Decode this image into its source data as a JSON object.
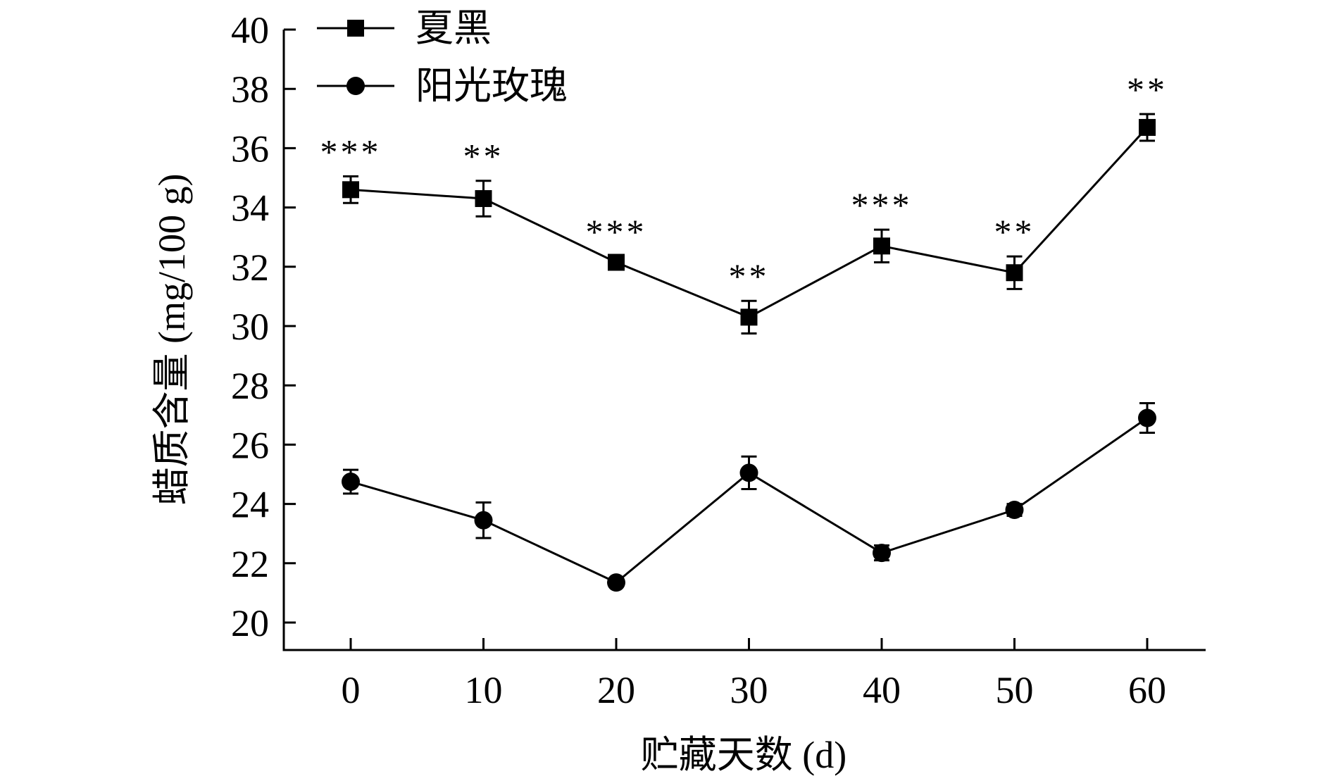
{
  "chart_data": {
    "type": "line",
    "title": "",
    "xlabel": "贮藏天数 (d)",
    "ylabel": "蜡质含量 (mg/100 g)",
    "x": [
      0,
      10,
      20,
      30,
      40,
      50,
      60
    ],
    "xlim": [
      -5,
      65
    ],
    "ylim": [
      19,
      40
    ],
    "xticks": [
      "0",
      "10",
      "20",
      "30",
      "40",
      "50",
      "60"
    ],
    "yticks": [
      "20",
      "22",
      "24",
      "26",
      "28",
      "30",
      "32",
      "34",
      "36",
      "38",
      "40"
    ],
    "legend_position": "top-left",
    "series": [
      {
        "name": "夏黑",
        "marker": "square",
        "values": [
          34.6,
          34.3,
          32.15,
          30.3,
          32.7,
          31.8,
          36.7
        ],
        "errors": [
          0.45,
          0.6,
          0.2,
          0.55,
          0.55,
          0.55,
          0.45
        ]
      },
      {
        "name": "阳光玫瑰",
        "marker": "circle",
        "values": [
          24.75,
          23.45,
          21.35,
          25.05,
          22.35,
          23.8,
          26.9
        ],
        "errors": [
          0.4,
          0.6,
          0.1,
          0.55,
          0.25,
          0.2,
          0.5
        ]
      }
    ],
    "annotations": [
      "***",
      "**",
      "***",
      "**",
      "***",
      "**",
      "**"
    ]
  }
}
